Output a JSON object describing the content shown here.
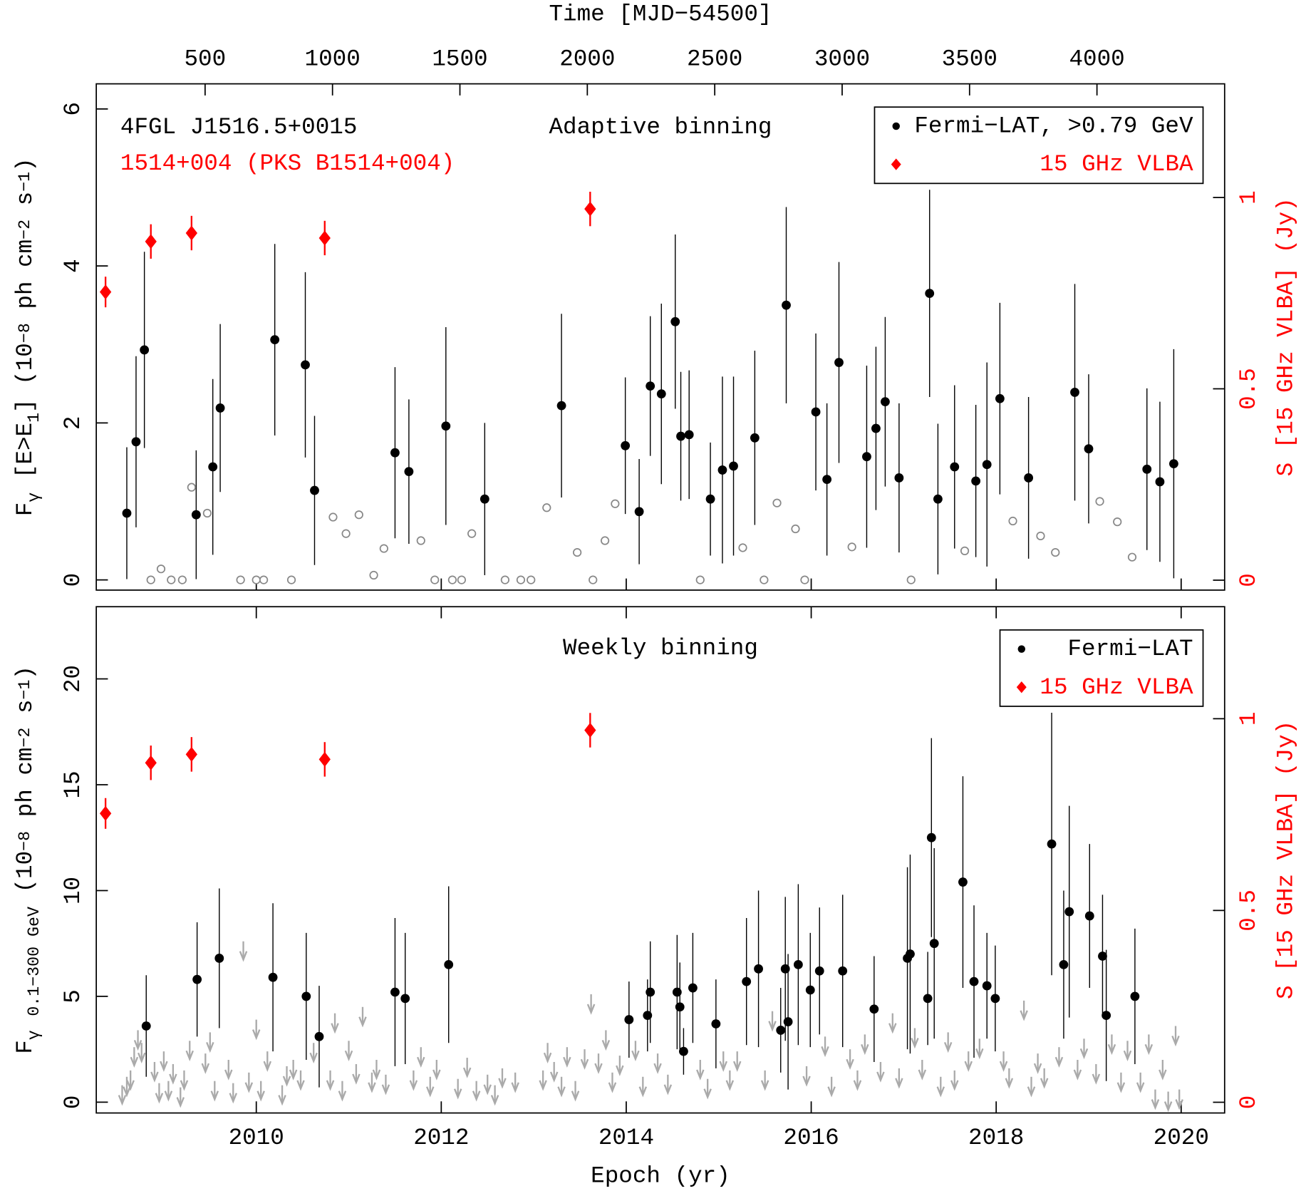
{
  "chart_data": [
    {
      "type": "scatter",
      "annotations": [
        {
          "text": "4FGL J1516.5+0015",
          "color": "#000000"
        },
        {
          "text": "1514+004 (PKS B1514+004)",
          "color": "#ff0000"
        },
        {
          "text": "Adaptive binning",
          "color": "#000000"
        }
      ],
      "x2label": "Time [MJD−54500]",
      "x2lim": [
        73,
        4501
      ],
      "x2ticks": [
        500,
        1000,
        1500,
        2000,
        2500,
        3000,
        3500,
        4000
      ],
      "xlim": [
        2008.27,
        2020.47
      ],
      "xticks": [
        2010,
        2012,
        2014,
        2016,
        2018,
        2020
      ],
      "ylim": [
        -0.13,
        6.32
      ],
      "yticks": [
        0,
        2,
        4,
        6
      ],
      "ylabel": [
        {
          "text": "F"
        },
        {
          "text": "γ",
          "shift": "sub"
        },
        {
          "text": " [E>E"
        },
        {
          "text": "1",
          "shift": "sub"
        },
        {
          "text": "] (10"
        },
        {
          "text": "−8",
          "shift": "sup"
        },
        {
          "text": " ph cm"
        },
        {
          "text": "−2",
          "shift": "sup"
        },
        {
          "text": " s"
        },
        {
          "text": "−1",
          "shift": "sup"
        },
        {
          "text": ")"
        }
      ],
      "y2lim": [
        -0.026,
        1.297
      ],
      "y2ticks": [
        0,
        0.5,
        1
      ],
      "y2label": "S [15 GHz VLBA] (Jy)",
      "legend": "upper right",
      "series": [
        {
          "name": "Fermi−LAT, >0.79 GeV",
          "color": "#000000",
          "marker": "circle",
          "x": [
            2008.6,
            2008.7,
            2008.79,
            2009.35,
            2009.53,
            2009.61,
            2010.2,
            2010.53,
            2010.63,
            2011.5,
            2011.65,
            2012.05,
            2012.47,
            2013.3,
            2013.99,
            2014.14,
            2014.26,
            2014.38,
            2014.53,
            2014.59,
            2014.68,
            2014.91,
            2015.04,
            2015.16,
            2015.39,
            2015.73,
            2016.05,
            2016.17,
            2016.3,
            2016.6,
            2016.7,
            2016.8,
            2016.95,
            2017.28,
            2017.37,
            2017.55,
            2017.78,
            2017.9,
            2018.04,
            2018.35,
            2018.85,
            2019.0,
            2019.63,
            2019.77,
            2019.92
          ],
          "values": [
            0.85,
            1.76,
            2.93,
            0.83,
            1.44,
            2.19,
            3.06,
            2.74,
            1.14,
            1.62,
            1.38,
            1.96,
            1.03,
            2.22,
            1.71,
            0.87,
            2.47,
            2.37,
            3.29,
            1.83,
            1.85,
            1.03,
            1.4,
            1.45,
            1.81,
            3.5,
            2.14,
            1.28,
            2.77,
            1.57,
            1.93,
            2.27,
            1.3,
            3.65,
            1.03,
            1.44,
            1.26,
            1.47,
            2.31,
            1.3,
            2.39,
            1.67,
            1.41,
            1.25,
            1.48
          ],
          "errors": [
            0.84,
            1.09,
            1.25,
            0.82,
            1.12,
            1.07,
            1.22,
            1.18,
            0.95,
            1.09,
            0.92,
            1.26,
            0.97,
            1.17,
            0.87,
            0.67,
            0.89,
            1.15,
            1.11,
            0.82,
            0.82,
            0.72,
            1.19,
            1.14,
            1.11,
            1.25,
            1.0,
            0.97,
            1.28,
            1.16,
            1.04,
            1.08,
            0.95,
            1.32,
            0.96,
            1.04,
            0.97,
            1.3,
            1.22,
            1.03,
            1.38,
            0.95,
            1.03,
            1.02,
            1.46
          ]
        },
        {
          "color": "#888888",
          "marker": "open-circle",
          "x": [
            2008.86,
            2008.97,
            2009.08,
            2009.2,
            2009.3,
            2009.47,
            2009.83,
            2010.0,
            2010.08,
            2010.38,
            2010.83,
            2010.97,
            2011.11,
            2011.27,
            2011.38,
            2011.78,
            2011.93,
            2012.12,
            2012.22,
            2012.33,
            2012.69,
            2012.86,
            2012.97,
            2013.14,
            2013.47,
            2013.64,
            2013.77,
            2013.88,
            2014.8,
            2015.26,
            2015.49,
            2015.63,
            2015.83,
            2015.93,
            2016.44,
            2017.08,
            2017.66,
            2018.18,
            2018.48,
            2018.64,
            2019.12,
            2019.31,
            2019.47
          ],
          "values": [
            0,
            0.14,
            0,
            0,
            1.18,
            0.85,
            0,
            0,
            0,
            0,
            0.8,
            0.59,
            0.83,
            0.06,
            0.4,
            0.5,
            0,
            0,
            0,
            0.59,
            0,
            0,
            0,
            0.92,
            0.35,
            0,
            0.5,
            0.97,
            0,
            0.41,
            0,
            0.98,
            0.65,
            0,
            0.42,
            0,
            0.37,
            0.75,
            0.56,
            0.35,
            1.0,
            0.74,
            0.29
          ]
        },
        {
          "name": "15 GHz VLBA",
          "color": "#ff0000",
          "marker": "diamond",
          "axis": "y2",
          "x": [
            2008.37,
            2008.86,
            2009.3,
            2010.74,
            2013.61
          ],
          "values": [
            0.753,
            0.885,
            0.907,
            0.894,
            0.97
          ],
          "errors": [
            0.04,
            0.045,
            0.045,
            0.045,
            0.045
          ]
        }
      ]
    },
    {
      "type": "scatter",
      "annotations": [
        {
          "text": "Weekly binning",
          "color": "#000000"
        }
      ],
      "xlabel": "Epoch (yr)",
      "xlim": [
        2008.27,
        2020.47
      ],
      "xticks": [
        2010,
        2012,
        2014,
        2016,
        2018,
        2020
      ],
      "ylim": [
        -0.51,
        23.41
      ],
      "yticks": [
        0,
        5,
        10,
        15,
        20
      ],
      "ylabel": [
        {
          "text": "F"
        },
        {
          "text": "γ",
          "shift": "sub"
        },
        {
          "text": " "
        },
        {
          "text": "0.1−300 GeV",
          "shift": "sub"
        },
        {
          "text": " (10"
        },
        {
          "text": "−8",
          "shift": "sup"
        },
        {
          "text": " ph cm"
        },
        {
          "text": "−2",
          "shift": "sup"
        },
        {
          "text": " s"
        },
        {
          "text": "−1",
          "shift": "sup"
        },
        {
          "text": ")"
        }
      ],
      "y2lim": [
        -0.028,
        1.292
      ],
      "y2ticks": [
        0,
        0.5,
        1
      ],
      "y2label": "S [15 GHz VLBA] (Jy)",
      "legend": "upper right",
      "series": [
        {
          "name": "Fermi−LAT",
          "color": "#000000",
          "marker": "circle",
          "x": [
            2008.81,
            2009.36,
            2009.6,
            2010.18,
            2010.54,
            2010.68,
            2011.5,
            2011.61,
            2012.08,
            2014.03,
            2014.23,
            2014.26,
            2014.55,
            2014.58,
            2014.62,
            2014.72,
            2014.97,
            2015.3,
            2015.43,
            2015.67,
            2015.72,
            2015.75,
            2015.86,
            2015.99,
            2016.09,
            2016.34,
            2016.68,
            2017.04,
            2017.07,
            2017.26,
            2017.3,
            2017.33,
            2017.64,
            2017.76,
            2017.9,
            2017.99,
            2018.6,
            2018.73,
            2018.79,
            2019.01,
            2019.15,
            2019.19,
            2019.5
          ],
          "values": [
            3.6,
            5.8,
            6.8,
            5.9,
            5.0,
            3.1,
            5.2,
            4.9,
            6.5,
            3.9,
            4.1,
            5.2,
            5.2,
            4.5,
            2.4,
            5.4,
            3.7,
            5.7,
            6.3,
            3.4,
            6.3,
            3.8,
            6.5,
            5.3,
            6.2,
            6.2,
            4.4,
            6.8,
            7.0,
            4.9,
            12.5,
            7.5,
            10.4,
            5.7,
            5.5,
            4.9,
            12.2,
            6.5,
            9.0,
            8.8,
            6.9,
            4.1,
            5.0
          ],
          "errors": [
            2.4,
            2.7,
            3.3,
            3.5,
            3.0,
            2.4,
            3.5,
            3.1,
            3.7,
            1.8,
            1.7,
            2.4,
            2.7,
            2.1,
            1.1,
            2.6,
            2.1,
            3.0,
            3.7,
            2.0,
            3.4,
            3.2,
            3.8,
            2.7,
            3.0,
            3.6,
            2.5,
            4.3,
            4.7,
            2.2,
            4.7,
            4.5,
            5.0,
            3.6,
            2.5,
            2.5,
            6.2,
            3.5,
            5.0,
            3.4,
            2.9,
            3.1,
            3.2
          ]
        },
        {
          "color": "#aaaaaa",
          "marker": "arrow",
          "x": [
            2008.55,
            2008.6,
            2008.64,
            2008.68,
            2008.72,
            2008.76,
            2008.9,
            2008.95,
            2009.0,
            2009.05,
            2009.1,
            2009.18,
            2009.22,
            2009.28,
            2009.45,
            2009.5,
            2009.55,
            2009.7,
            2009.75,
            2009.86,
            2009.92,
            2010.0,
            2010.05,
            2010.12,
            2010.28,
            2010.33,
            2010.4,
            2010.48,
            2010.62,
            2010.8,
            2010.85,
            2010.93,
            2011.0,
            2011.08,
            2011.15,
            2011.25,
            2011.3,
            2011.4,
            2011.7,
            2011.78,
            2011.88,
            2011.95,
            2012.18,
            2012.28,
            2012.38,
            2012.5,
            2012.58,
            2012.66,
            2012.8,
            2013.1,
            2013.15,
            2013.22,
            2013.3,
            2013.36,
            2013.45,
            2013.55,
            2013.62,
            2013.7,
            2013.78,
            2013.85,
            2013.93,
            2014.1,
            2014.18,
            2014.34,
            2014.45,
            2014.8,
            2014.88,
            2015.05,
            2015.12,
            2015.2,
            2015.5,
            2015.58,
            2015.95,
            2016.15,
            2016.22,
            2016.42,
            2016.5,
            2016.58,
            2016.75,
            2016.88,
            2016.95,
            2017.12,
            2017.2,
            2017.4,
            2017.48,
            2017.55,
            2017.7,
            2017.82,
            2018.08,
            2018.14,
            2018.3,
            2018.38,
            2018.45,
            2018.52,
            2018.68,
            2018.88,
            2018.95,
            2019.08,
            2019.25,
            2019.35,
            2019.42,
            2019.56,
            2019.65,
            2019.72,
            2019.8,
            2019.86,
            2019.94,
            2019.98
          ],
          "values": [
            0.8,
            1.2,
            1.5,
            2.6,
            3.4,
            2.8,
            1.9,
            0.9,
            2.4,
            1.0,
            1.8,
            0.7,
            1.5,
            2.9,
            2.3,
            3.3,
            1.0,
            2.0,
            0.9,
            7.6,
            1.4,
            3.9,
            1.0,
            2.4,
            0.8,
            1.7,
            2.0,
            1.5,
            2.8,
            1.5,
            4.2,
            1.0,
            2.9,
            1.8,
            4.5,
            1.4,
            2.0,
            1.3,
            1.5,
            2.6,
            1.2,
            2.0,
            1.1,
            2.1,
            1.0,
            1.3,
            0.8,
            1.6,
            1.4,
            1.5,
            2.8,
            1.9,
            1.2,
            2.6,
            1.0,
            2.5,
            5.1,
            2.3,
            3.4,
            1.4,
            2.2,
            2.9,
            1.2,
            2.3,
            1.3,
            2.0,
            1.1,
            2.4,
            1.5,
            2.4,
            1.5,
            4.3,
            1.7,
            3.1,
            1.2,
            2.5,
            1.5,
            3.2,
            1.9,
            4.2,
            1.6,
            3.5,
            2.0,
            1.2,
            3.3,
            1.5,
            2.4,
            3.0,
            2.4,
            1.6,
            4.8,
            1.2,
            2.3,
            1.6,
            2.6,
            2.0,
            3.0,
            1.8,
            3.2,
            1.4,
            2.9,
            1.4,
            3.2,
            0.6,
            2.0,
            0.5,
            3.6,
            0.6
          ]
        },
        {
          "name": "15 GHz VLBA",
          "color": "#ff0000",
          "marker": "diamond",
          "axis": "y2",
          "x": [
            2008.37,
            2008.86,
            2009.3,
            2010.74,
            2013.61
          ],
          "values": [
            0.753,
            0.885,
            0.907,
            0.894,
            0.97
          ],
          "errors": [
            0.04,
            0.045,
            0.045,
            0.045,
            0.045
          ]
        }
      ]
    }
  ]
}
